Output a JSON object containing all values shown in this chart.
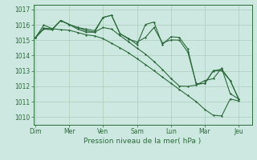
{
  "background_color": "#cce8e0",
  "grid_color": "#aaccbb",
  "line_color": "#2d6b3c",
  "title": "Pression niveau de la mer( hPa )",
  "ylim": [
    1009.5,
    1017.3
  ],
  "yticks": [
    1010,
    1011,
    1012,
    1013,
    1014,
    1015,
    1016,
    1017
  ],
  "day_labels": [
    "Dim",
    "Mer",
    "Ven",
    "Sam",
    "Lun",
    "Mar",
    "Jeu"
  ],
  "day_positions": [
    0,
    18,
    36,
    54,
    72,
    90,
    108
  ],
  "xlim": [
    -1,
    115
  ],
  "series": [
    [
      1015.15,
      1015.98,
      1015.75,
      1015.68,
      1015.65,
      1015.5,
      1015.35,
      1015.28,
      1015.1,
      1014.8,
      1014.5,
      1014.18,
      1013.8,
      1013.42,
      1013.02,
      1012.6,
      1012.2,
      1011.8,
      1011.4,
      1011.0,
      1010.5,
      1010.12,
      1010.08,
      1011.18,
      1011.05
    ],
    [
      1015.15,
      1015.78,
      1015.72,
      1016.28,
      1016.02,
      1015.82,
      1015.72,
      1015.62,
      1016.48,
      1016.62,
      1015.42,
      1015.12,
      1014.72,
      1016.02,
      1016.18,
      1014.72,
      1015.22,
      1015.18,
      1014.42,
      1012.12,
      1012.2,
      1013.0,
      1013.12,
      1012.38,
      1011.18
    ],
    [
      1015.15,
      1015.72,
      1015.68,
      1016.28,
      1016.02,
      1015.72,
      1015.52,
      1015.52,
      1016.48,
      1016.62,
      1015.42,
      1015.08,
      1014.88,
      1015.18,
      1015.82,
      1014.82,
      1015.02,
      1015.0,
      1014.22,
      1012.18,
      1012.18,
      1013.02,
      1013.02,
      1012.38,
      1011.18
    ],
    [
      1015.15,
      1015.78,
      1015.72,
      1016.28,
      1016.02,
      1015.82,
      1015.62,
      1015.52,
      1015.82,
      1015.72,
      1015.3,
      1014.9,
      1014.48,
      1014.1,
      1013.62,
      1013.1,
      1012.52,
      1012.02,
      1012.0,
      1012.08,
      1012.38,
      1012.5,
      1013.18,
      1011.52,
      1011.18
    ]
  ]
}
